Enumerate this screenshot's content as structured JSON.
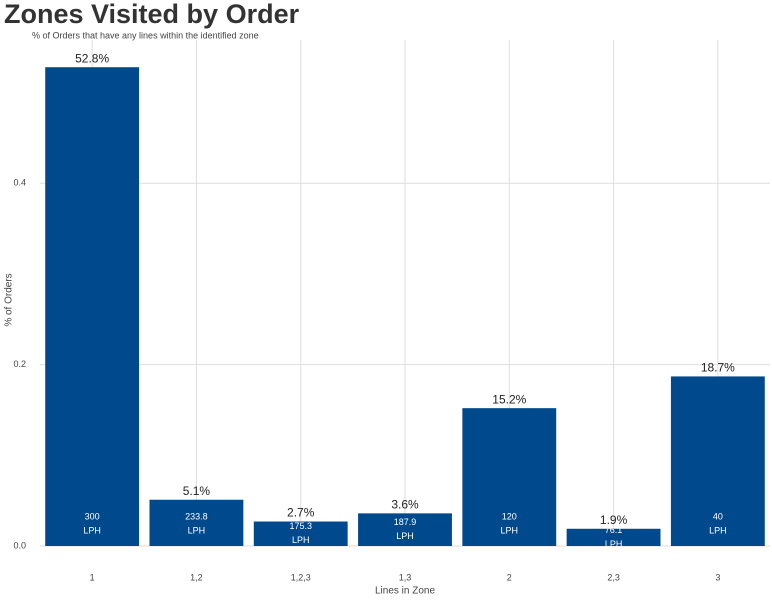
{
  "chart_data": {
    "type": "bar",
    "title": "Zones Visited by Order",
    "subtitle": "% of Orders that have any lines within the identified zone",
    "x_label": "Lines in Zone",
    "y_label": "% of Orders",
    "categories": [
      "1",
      "1,2",
      "1,2,3",
      "1,3",
      "2",
      "2,3",
      "3"
    ],
    "values": [
      0.528,
      0.051,
      0.027,
      0.036,
      0.152,
      0.019,
      0.187
    ],
    "value_labels": [
      "52.8%",
      "5.1%",
      "2.7%",
      "3.6%",
      "15.2%",
      "1.9%",
      "18.7%"
    ],
    "inner_values": [
      300,
      233.8,
      175.3,
      187.9,
      120,
      76.1,
      40
    ],
    "inner_unit": "LPH",
    "color": "#00498c",
    "ylim": [
      0,
      0.558
    ],
    "yticks": [
      {
        "value": 0,
        "label": "0.0"
      },
      0.2,
      0.4
    ],
    "grid": true
  }
}
